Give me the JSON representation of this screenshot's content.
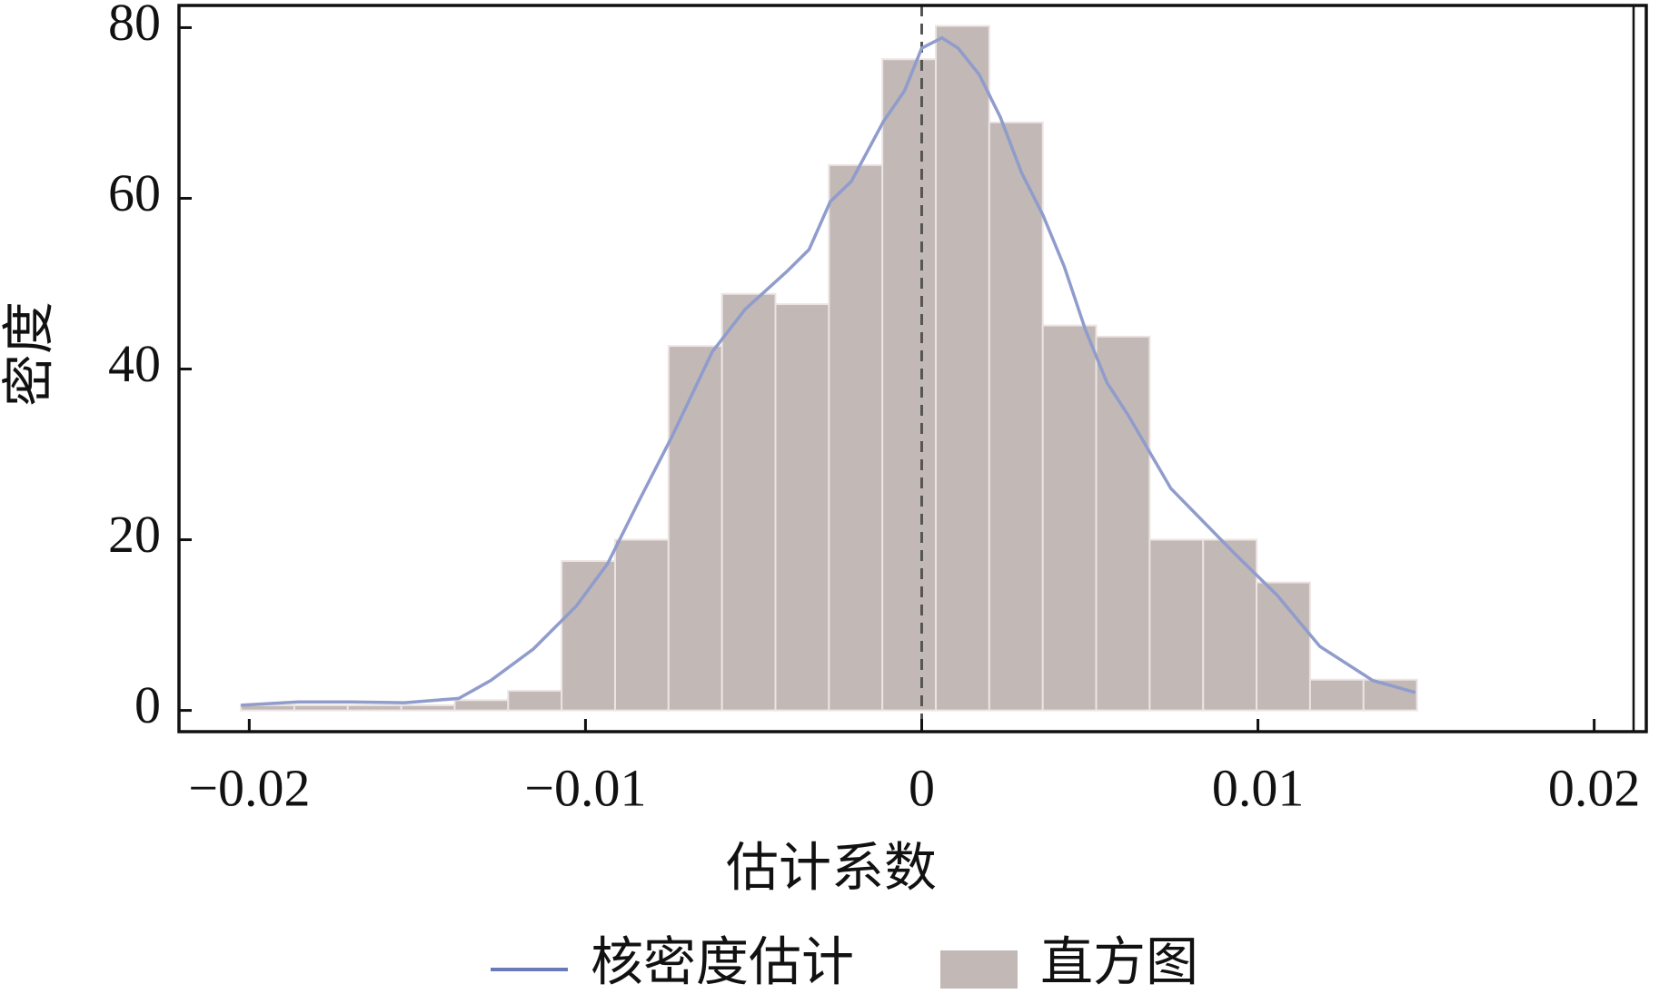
{
  "chart_data": {
    "type": "histogram",
    "xlabel": "估计系数",
    "ylabel": "密度",
    "name": "直方图",
    "color": "#c2b8b5",
    "bins": [
      -0.02025,
      -0.01866,
      -0.01707,
      -0.01548,
      -0.01389,
      -0.0123,
      -0.01071,
      -0.00912,
      -0.00753,
      -0.00594,
      -0.00435,
      -0.00276,
      -0.00117,
      0.00042,
      0.00201,
      0.0036,
      0.00519,
      0.00678,
      0.00837,
      0.00996,
      0.01155,
      0.01314,
      0.01473
    ],
    "values": [
      0.6,
      0.6,
      0.6,
      0.6,
      1.2,
      2.3,
      17.5,
      20,
      42.7,
      48.8,
      47.6,
      63.9,
      76.3,
      80.2,
      68.9,
      45.1,
      43.8,
      20,
      20,
      15,
      3.6,
      3.6
    ],
    "line": {
      "name": "核密度估计",
      "color": "#8f9ccc",
      "x": [
        -0.02025,
        -0.01854,
        -0.01696,
        -0.01538,
        -0.01377,
        -0.01282,
        -0.01155,
        -0.01028,
        -0.00934,
        -0.00839,
        -0.00744,
        -0.00623,
        -0.00525,
        -0.00399,
        -0.00335,
        -0.00272,
        -0.00209,
        -0.00114,
        -0.00051,
        0,
        0.0006,
        0.00108,
        0.00171,
        0.00234,
        0.00297,
        0.00361,
        0.00424,
        0.00487,
        0.00551,
        0.00614,
        0.00741,
        0.0093,
        0.01057,
        0.01184,
        0.01342,
        0.01468
      ],
      "values": [
        0.6,
        1,
        1,
        0.9,
        1.4,
        3.5,
        7.2,
        12.2,
        17.2,
        24.7,
        32,
        42,
        47,
        51.5,
        54,
        59.6,
        62,
        69,
        72.6,
        77.6,
        78.8,
        77.6,
        74.5,
        69.5,
        63,
        58,
        52,
        44.6,
        38.4,
        34.6,
        26,
        18.4,
        13.5,
        7.5,
        3.5,
        2.1
      ]
    },
    "reference_line": 0,
    "xlim": [
      -0.02209,
      0.02155
    ],
    "ylim": [
      -2.49,
      82.6
    ],
    "xticks": [
      {
        "value": -0.02,
        "label": "−0.02"
      },
      {
        "value": -0.01,
        "label": "−0.01"
      },
      0,
      0.01,
      0.02
    ],
    "yticks": [
      0,
      20,
      40,
      60,
      80
    ]
  }
}
